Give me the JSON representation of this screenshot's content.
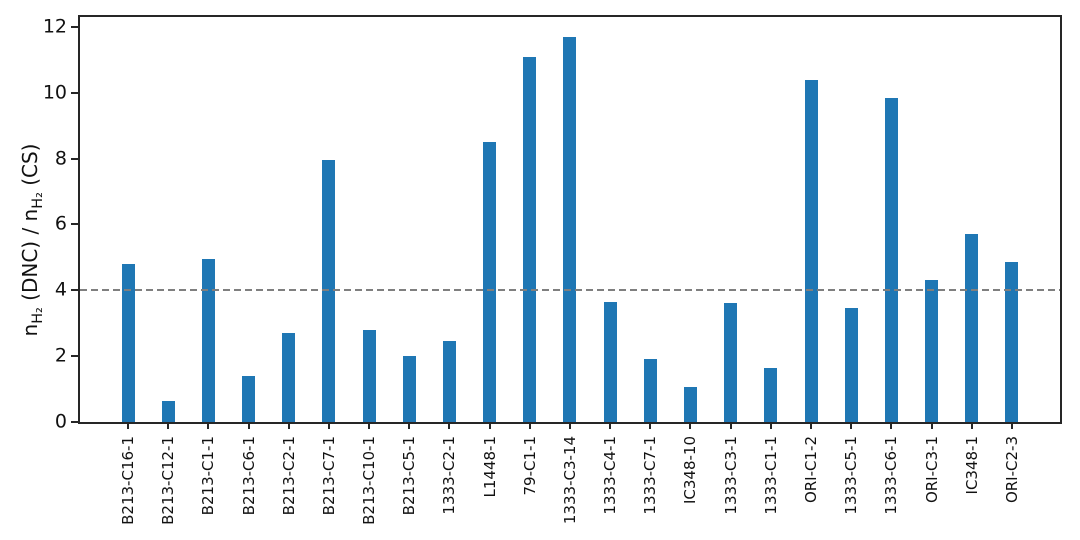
{
  "figure": {
    "background": "#ffffff",
    "axis_color": "#262626",
    "text_color": "#111111"
  },
  "chart_data": {
    "type": "bar",
    "title": "",
    "xlabel": "",
    "ylabel": "n_H2 (DNC) / n_H2 (CS)",
    "ylabel_parts": [
      {
        "text": "n",
        "sub": false
      },
      {
        "text": "H₂",
        "sub": true
      },
      {
        "text": " (DNC) / ",
        "sub": false
      },
      {
        "text": "n",
        "sub": false
      },
      {
        "text": "H₂",
        "sub": true
      },
      {
        "text": " (CS)",
        "sub": false
      }
    ],
    "categories": [
      "B213-C16-1",
      "B213-C12-1",
      "B213-C1-1",
      "B213-C6-1",
      "B213-C2-1",
      "B213-C7-1",
      "B213-C10-1",
      "B213-C5-1",
      "1333-C2-1",
      "L1448-1",
      "79-C1-1",
      "1333-C3-14",
      "1333-C4-1",
      "1333-C7-1",
      "IC348-10",
      "1333-C3-1",
      "1333-C1-1",
      "ORI-C1-2",
      "1333-C5-1",
      "1333-C6-1",
      "ORI-C3-1",
      "IC348-1",
      "ORI-C2-3"
    ],
    "values": [
      4.8,
      0.65,
      4.95,
      1.4,
      2.7,
      7.95,
      2.8,
      2.0,
      2.45,
      8.5,
      11.1,
      11.7,
      3.65,
      1.9,
      1.05,
      3.6,
      1.65,
      10.4,
      3.45,
      9.85,
      4.3,
      5.7,
      4.85
    ],
    "bar_color": "#1f77b4",
    "yticks": [
      0,
      2,
      4,
      6,
      8,
      10,
      12
    ],
    "ylim": [
      0,
      12.3
    ],
    "grid": false,
    "legend_position": "none",
    "reference_line": {
      "y": 4,
      "style": "dashed",
      "color": "#7f7f7f"
    }
  }
}
